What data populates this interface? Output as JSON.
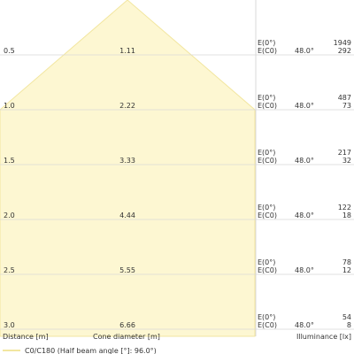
{
  "chart_data": {
    "type": "area",
    "title": "",
    "half_beam_angle_deg": 96.0,
    "distance_unit": "m",
    "rows": [
      {
        "distance": "0.5",
        "diameter": "1.11",
        "e0": "1949",
        "ec0": "292",
        "angle": "48.0°"
      },
      {
        "distance": "1.0",
        "diameter": "2.22",
        "e0": "487",
        "ec0": "73",
        "angle": "48.0°"
      },
      {
        "distance": "1.5",
        "diameter": "3.33",
        "e0": "217",
        "ec0": "32",
        "angle": "48.0°"
      },
      {
        "distance": "2.0",
        "diameter": "4.44",
        "e0": "122",
        "ec0": "18",
        "angle": "48.0°"
      },
      {
        "distance": "2.5",
        "diameter": "5.55",
        "e0": "78",
        "ec0": "12",
        "angle": "48.0°"
      },
      {
        "distance": "3.0",
        "diameter": "6.66",
        "e0": "54",
        "ec0": "8",
        "angle": "48.0°"
      }
    ],
    "row_labels": {
      "e0": "E(0°)",
      "ec0": "E(C0)"
    },
    "footer": {
      "distance": "Distance [m]",
      "diameter": "Cone diameter [m]",
      "illuminance": "Illuminance [lx]"
    },
    "legend": "C0/C180 (Half beam angle [°]: 96.0°)",
    "colors": {
      "fill": "#fdf7d2",
      "stroke": "#f2e6a0",
      "grid": "#d9d9d9",
      "text": "#333333"
    }
  }
}
